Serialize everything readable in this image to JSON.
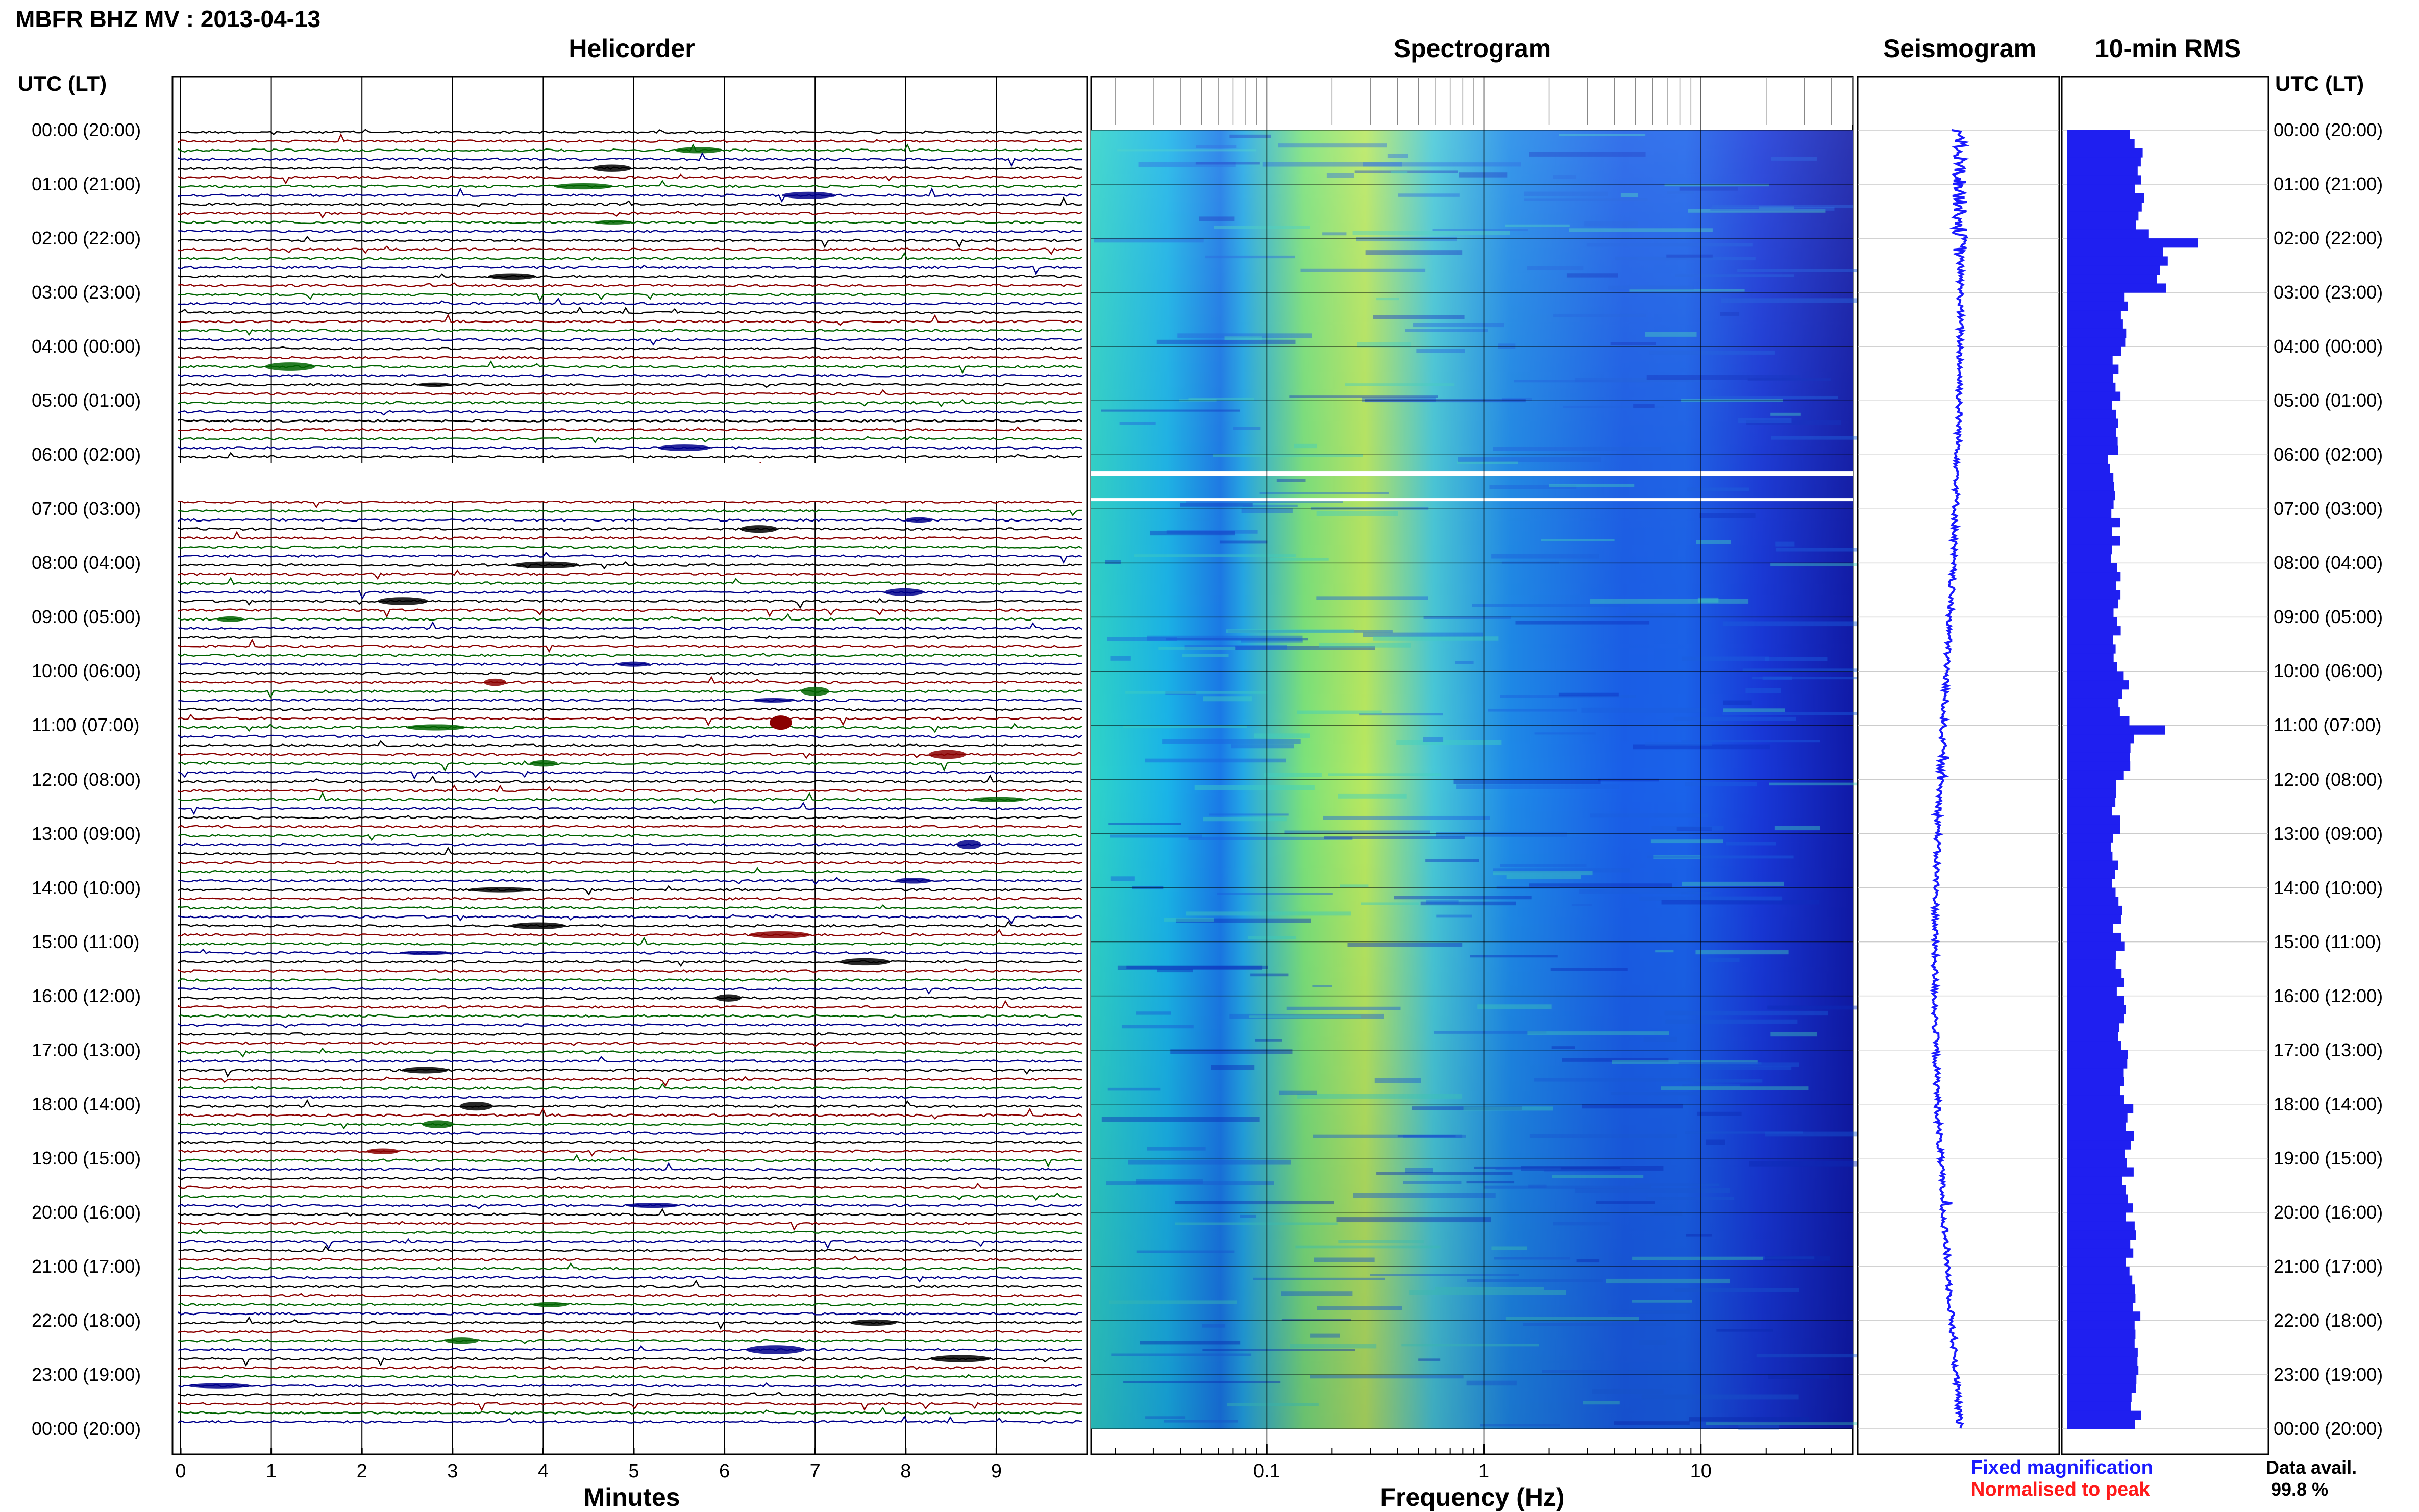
{
  "header": {
    "title": "MBFR BHZ MV : 2013-04-13"
  },
  "panels": {
    "helicorder": {
      "title": "Helicorder",
      "xlabel": "Minutes",
      "ticks": [
        "0",
        "1",
        "2",
        "3",
        "4",
        "5",
        "6",
        "7",
        "8",
        "9"
      ]
    },
    "spectrogram": {
      "title": "Spectrogram",
      "xlabel": "Frequency (Hz)",
      "ticks": [
        "0.1",
        "1",
        "10"
      ],
      "scale": "log"
    },
    "seismogram": {
      "title": "Seismogram"
    },
    "rms": {
      "title": "10-min RMS"
    }
  },
  "time_axis": {
    "header": "UTC (LT)",
    "labels": [
      "00:00 (20:00)",
      "01:00 (21:00)",
      "02:00 (22:00)",
      "03:00 (23:00)",
      "04:00 (00:00)",
      "05:00 (01:00)",
      "06:00 (02:00)",
      "07:00 (03:00)",
      "08:00 (04:00)",
      "09:00 (05:00)",
      "10:00 (06:00)",
      "11:00 (07:00)",
      "12:00 (08:00)",
      "13:00 (09:00)",
      "14:00 (10:00)",
      "15:00 (11:00)",
      "16:00 (12:00)",
      "17:00 (13:00)",
      "18:00 (14:00)",
      "19:00 (15:00)",
      "20:00 (16:00)",
      "21:00 (17:00)",
      "22:00 (18:00)",
      "23:00 (19:00)",
      "00:00 (20:00)"
    ]
  },
  "legend": {
    "fixed": "Fixed magnification",
    "normalised": "Normalised to peak",
    "fixed_color": "#1a1aff",
    "normalised_color": "#ff1a1a"
  },
  "availability": {
    "label": "Data avail.",
    "value": "99.8 %"
  },
  "colors": {
    "trace": [
      "#000000",
      "#8b0000",
      "#006400",
      "#00008b"
    ],
    "rms_bar": "#1f1ff0",
    "seis": "#1a1aff"
  },
  "chart_data": {
    "type": "bar",
    "title": "10-min RMS",
    "note_hours": [
      0,
      1,
      2,
      3,
      4,
      5,
      6,
      7,
      8,
      9,
      10,
      11,
      12,
      13,
      14,
      15,
      16,
      17,
      18,
      19,
      20,
      21,
      22,
      23
    ],
    "rms_hourly_relative": [
      0.85,
      0.92,
      1.2,
      0.72,
      0.62,
      0.6,
      0.55,
      0.6,
      0.6,
      0.62,
      0.7,
      0.75,
      0.6,
      0.6,
      0.62,
      0.65,
      0.68,
      0.7,
      0.75,
      0.75,
      0.8,
      0.85,
      0.88,
      0.85
    ]
  }
}
